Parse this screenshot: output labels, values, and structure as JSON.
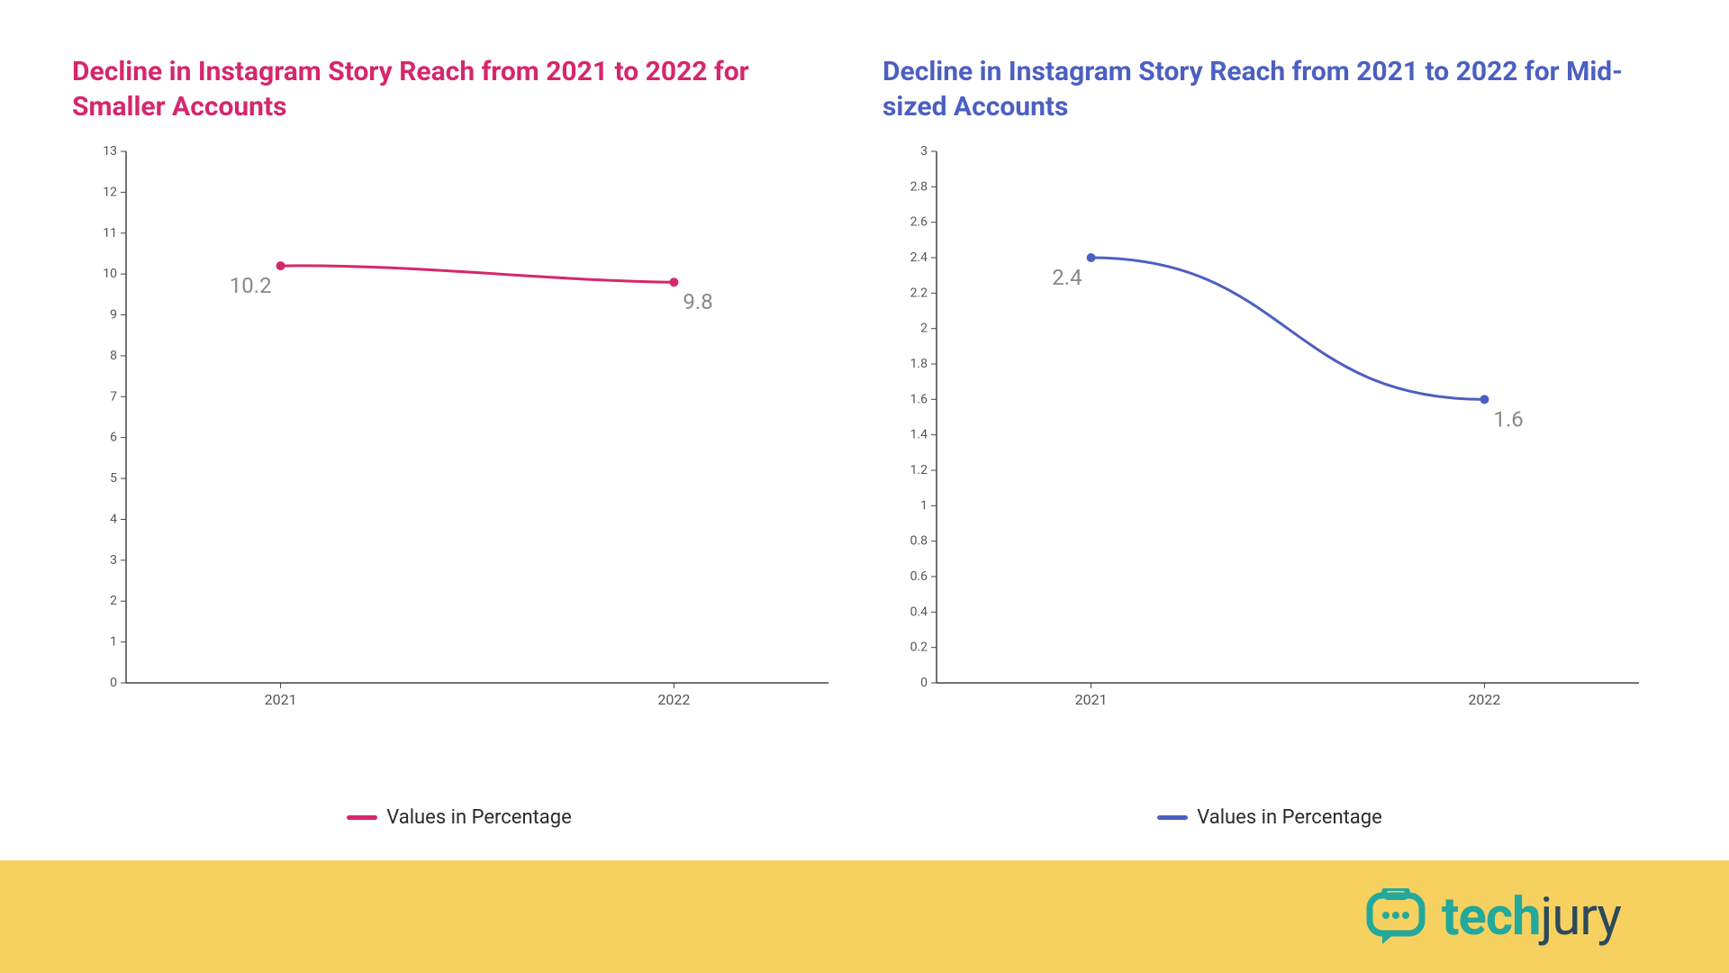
{
  "background_color": "#ffffff",
  "left_chart": {
    "type": "line",
    "title": "Decline in Instagram Story Reach from 2021 to 2022 for Smaller Accounts",
    "title_color": "#d5276c",
    "title_fontsize": 30,
    "title_fontweight": 700,
    "series_color": "#d5276c",
    "line_width": 3,
    "marker_radius": 5,
    "point_label_color": "#888888",
    "point_label_fontsize": 24,
    "axis_color": "#444444",
    "tick_label_color": "#555555",
    "tick_label_fontsize": 14,
    "xtick_label_fontsize": 16,
    "grid": false,
    "x_categories": [
      "2021",
      "2022"
    ],
    "y_min": 0,
    "y_max": 13,
    "y_tick_step": 1,
    "values": [
      10.2,
      9.8
    ],
    "point_label_positions": [
      "below-left",
      "below-right"
    ],
    "legend_label": "Values in Percentage",
    "curve": "slight"
  },
  "right_chart": {
    "type": "line",
    "title": "Decline in Instagram Story Reach from 2021 to 2022 for Mid-sized Accounts",
    "title_color": "#4c5fc1",
    "title_fontsize": 30,
    "title_fontweight": 700,
    "series_color": "#4c5fc1",
    "line_width": 3,
    "marker_radius": 5,
    "point_label_color": "#888888",
    "point_label_fontsize": 24,
    "axis_color": "#444444",
    "tick_label_color": "#555555",
    "tick_label_fontsize": 14,
    "xtick_label_fontsize": 16,
    "grid": false,
    "x_categories": [
      "2021",
      "2022"
    ],
    "y_min": 0,
    "y_max": 3,
    "y_tick_step": 0.2,
    "values": [
      2.4,
      1.6
    ],
    "point_label_positions": [
      "below-left",
      "below-right"
    ],
    "legend_label": "Values in Percentage",
    "curve": "s-curve"
  },
  "footer": {
    "band_color": "#f7d15f",
    "logo_icon_color": "#23a89c",
    "logo_text_color_primary": "#23a89c",
    "logo_text_color_secondary": "#2b4a5c",
    "logo_word_primary": "tech",
    "logo_word_secondary": "jury"
  }
}
